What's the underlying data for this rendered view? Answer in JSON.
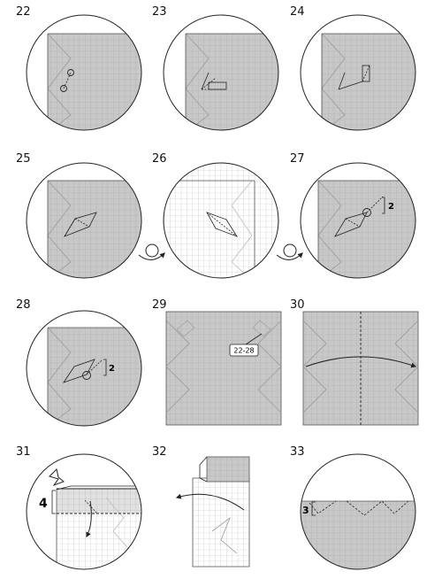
{
  "colors": {
    "paper": "#c8c8c8",
    "paper_white": "#ffffff",
    "grid_dark": "#a9a9a9",
    "grid_light": "#bdbdbd",
    "line": "#222222",
    "crease_faint": "#9a9a9a",
    "arrow": "#222222"
  },
  "steps": [
    {
      "number": "22"
    },
    {
      "number": "23"
    },
    {
      "number": "24"
    },
    {
      "number": "25"
    },
    {
      "number": "26"
    },
    {
      "number": "27"
    },
    {
      "number": "28"
    },
    {
      "number": "29"
    },
    {
      "number": "30"
    },
    {
      "number": "31"
    },
    {
      "number": "32"
    },
    {
      "number": "33"
    }
  ],
  "annotations": {
    "step27_mark": "2",
    "step28_mark": "2",
    "step29_ref": "22-28",
    "step31_mark": "4",
    "step33_mark": "3"
  },
  "icons": [
    "turn-over-icon",
    "push-arrow-icon",
    "fold-arrow-icon"
  ]
}
